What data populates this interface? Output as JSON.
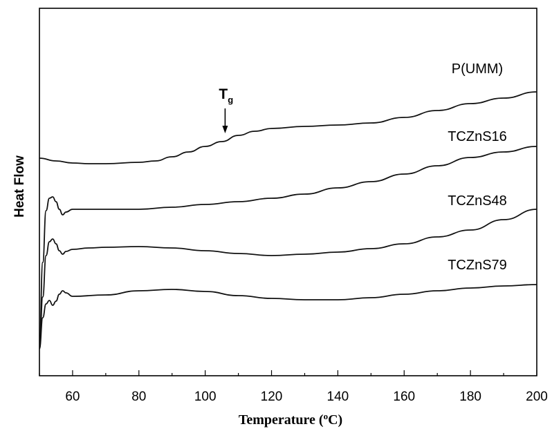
{
  "chart_data": {
    "type": "line",
    "title": "",
    "xlabel": "Temperature (",
    "xlabel_sup": "o",
    "xlabel_end": "C)",
    "ylabel": "Heat Flow",
    "xlim": [
      50,
      200
    ],
    "x_ticks": [
      60,
      80,
      100,
      120,
      140,
      160,
      180,
      200
    ],
    "x_tick_labels": [
      "60",
      "80",
      "100",
      "120",
      "140",
      "160",
      "180",
      "200"
    ],
    "grid": false,
    "series": [
      {
        "name": "P(UMM)",
        "points": [
          [
            50,
            229
          ],
          [
            55,
            233
          ],
          [
            60,
            236
          ],
          [
            65,
            237
          ],
          [
            70,
            237
          ],
          [
            80,
            235
          ],
          [
            85,
            233
          ],
          [
            90,
            227
          ],
          [
            95,
            220
          ],
          [
            100,
            212
          ],
          [
            105,
            205
          ],
          [
            110,
            196
          ],
          [
            115,
            190
          ],
          [
            120,
            186
          ],
          [
            130,
            183
          ],
          [
            140,
            181
          ],
          [
            150,
            178
          ],
          [
            160,
            170
          ],
          [
            170,
            160
          ],
          [
            180,
            150
          ],
          [
            190,
            142
          ],
          [
            200,
            133
          ]
        ]
      },
      {
        "name": "TCZnS16",
        "points": [
          [
            50,
            500
          ],
          [
            51,
            380
          ],
          [
            52,
            305
          ],
          [
            53,
            287
          ],
          [
            54,
            285
          ],
          [
            55,
            292
          ],
          [
            56,
            303
          ],
          [
            57,
            311
          ],
          [
            58,
            307
          ],
          [
            60,
            303
          ],
          [
            70,
            303
          ],
          [
            80,
            303
          ],
          [
            90,
            300
          ],
          [
            100,
            296
          ],
          [
            110,
            292
          ],
          [
            120,
            287
          ],
          [
            130,
            281
          ],
          [
            140,
            272
          ],
          [
            150,
            263
          ],
          [
            160,
            252
          ],
          [
            170,
            240
          ],
          [
            180,
            228
          ],
          [
            190,
            220
          ],
          [
            200,
            212
          ]
        ]
      },
      {
        "name": "TCZnS48",
        "points": [
          [
            50,
            505
          ],
          [
            51,
            430
          ],
          [
            52,
            370
          ],
          [
            53,
            350
          ],
          [
            54,
            346
          ],
          [
            55,
            353
          ],
          [
            56,
            363
          ],
          [
            57,
            368
          ],
          [
            58,
            364
          ],
          [
            60,
            361
          ],
          [
            65,
            359
          ],
          [
            70,
            358
          ],
          [
            80,
            357
          ],
          [
            90,
            359
          ],
          [
            100,
            363
          ],
          [
            110,
            367
          ],
          [
            120,
            370
          ],
          [
            130,
            368
          ],
          [
            140,
            365
          ],
          [
            150,
            360
          ],
          [
            160,
            353
          ],
          [
            170,
            343
          ],
          [
            180,
            333
          ],
          [
            190,
            318
          ],
          [
            200,
            303
          ]
        ]
      },
      {
        "name": "TCZnS79",
        "points": [
          [
            50,
            505
          ],
          [
            51,
            460
          ],
          [
            52,
            440
          ],
          [
            53,
            435
          ],
          [
            54,
            442
          ],
          [
            55,
            436
          ],
          [
            56,
            426
          ],
          [
            57,
            421
          ],
          [
            58,
            424
          ],
          [
            60,
            429
          ],
          [
            70,
            427
          ],
          [
            80,
            421
          ],
          [
            90,
            419
          ],
          [
            100,
            422
          ],
          [
            110,
            428
          ],
          [
            120,
            432
          ],
          [
            130,
            434
          ],
          [
            140,
            434
          ],
          [
            150,
            431
          ],
          [
            160,
            426
          ],
          [
            170,
            421
          ],
          [
            180,
            417
          ],
          [
            190,
            414
          ],
          [
            200,
            412
          ]
        ]
      }
    ],
    "annotations": [
      {
        "text": "T",
        "sub": "g",
        "at_x": 106
      }
    ]
  }
}
